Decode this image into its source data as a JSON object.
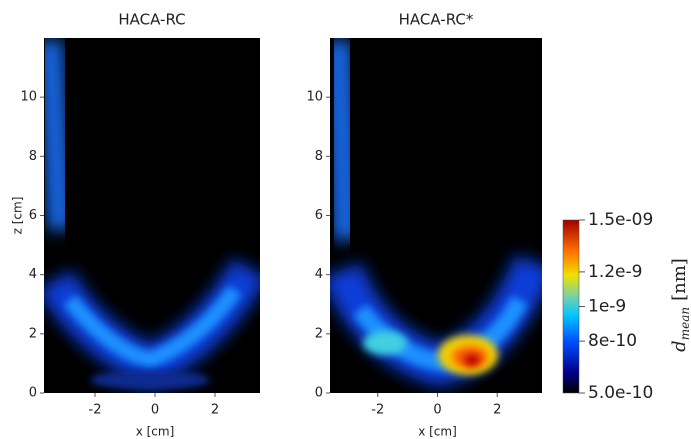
{
  "chart_data": [
    {
      "type": "heatmap",
      "title": "HACA-RC",
      "xlabel": "x [cm]",
      "ylabel": "z [cm]",
      "xlim": [
        -3.7,
        3.5
      ],
      "ylim": [
        0,
        12
      ],
      "xticks": [
        -2,
        0,
        2
      ],
      "yticks": [
        0,
        2,
        4,
        6,
        8,
        10
      ]
    },
    {
      "type": "heatmap",
      "title": "HACA-RC*",
      "xlabel": "x [cm]",
      "xlim": [
        -3.6,
        3.5
      ],
      "ylim": [
        0,
        12
      ],
      "xticks": [
        -2,
        0,
        2
      ],
      "yticks": [
        0,
        2,
        4,
        6,
        8,
        10
      ],
      "colorbar": {
        "symbol": "d",
        "subscript": "mean",
        "unit": "[nm]",
        "lim": [
          5e-10,
          1.5e-09
        ],
        "ticks": [
          {
            "value": 5e-10,
            "label": "5.0e-10"
          },
          8e-10,
          1e-09,
          1.2e-09,
          {
            "value": 1.5e-09,
            "label": "1.5e-09"
          }
        ]
      }
    }
  ]
}
